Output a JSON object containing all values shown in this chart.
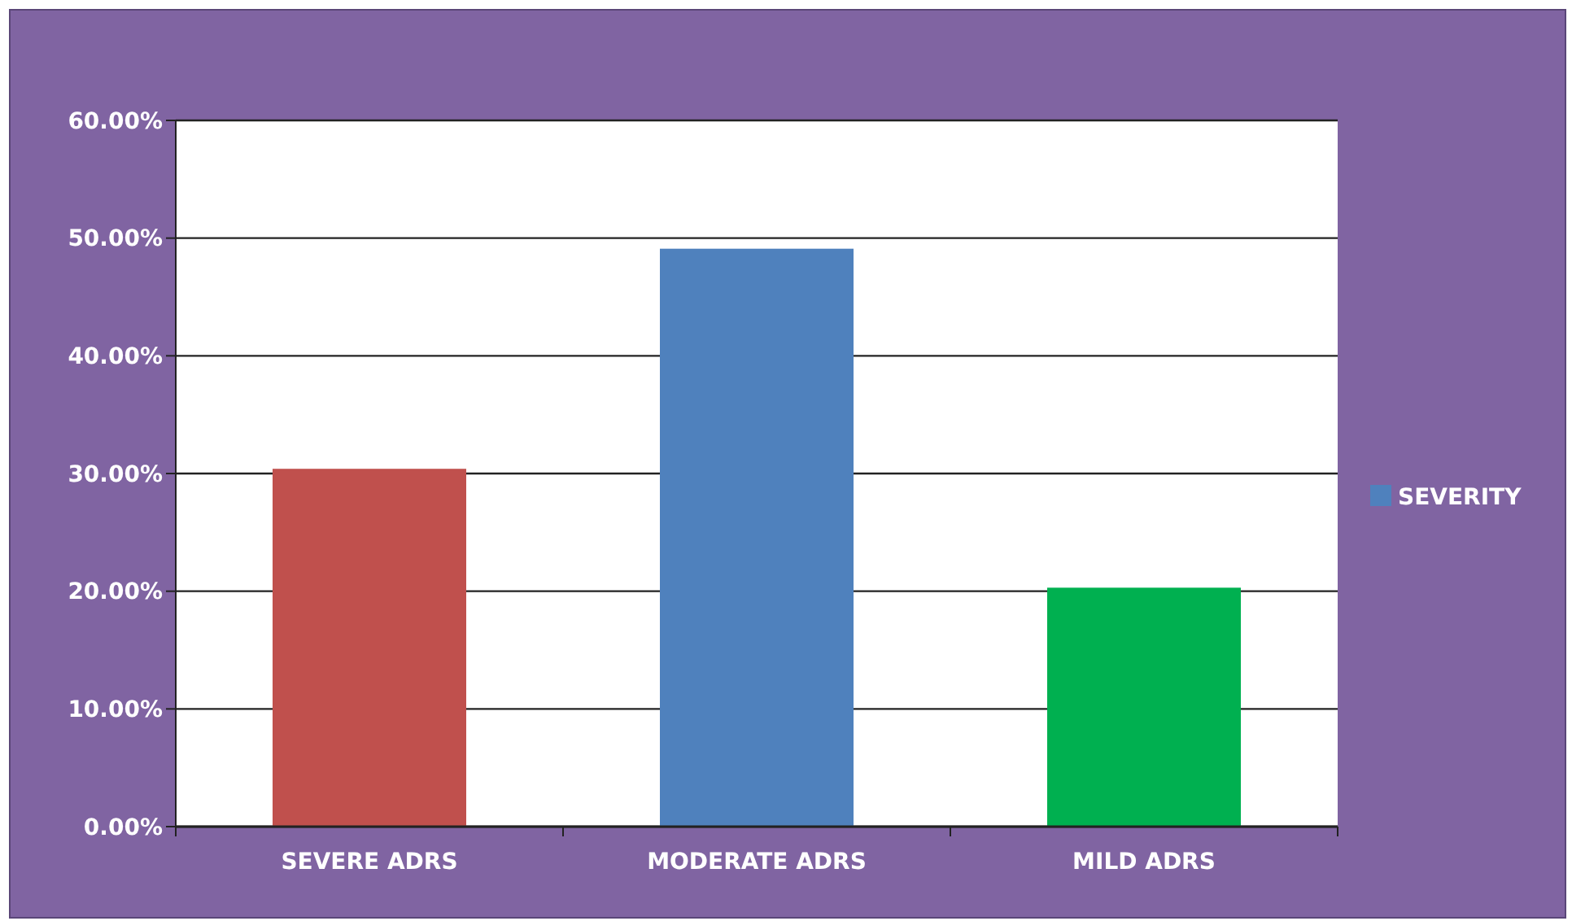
{
  "chart_data": {
    "type": "bar",
    "categories": [
      "SEVERE ADRS",
      "MODERATE ADRS",
      "MILD ADRS"
    ],
    "series": [
      {
        "name": "SEVERITY",
        "color": "#4f81bd",
        "colors": [
          "#c0504d",
          "#4f81bd",
          "#00b050"
        ],
        "values": [
          30.4,
          49.1,
          20.3
        ]
      }
    ],
    "ylim": [
      0,
      60
    ],
    "yticks": [
      {
        "value": 0,
        "label": "0.00%"
      },
      {
        "value": 10,
        "label": "10.00%"
      },
      {
        "value": 20,
        "label": "20.00%"
      },
      {
        "value": 30,
        "label": "30.00%"
      },
      {
        "value": 40,
        "label": "40.00%"
      },
      {
        "value": 50,
        "label": "50.00%"
      },
      {
        "value": 60,
        "label": "60.00%"
      }
    ],
    "grid": "y",
    "legend": "right"
  }
}
